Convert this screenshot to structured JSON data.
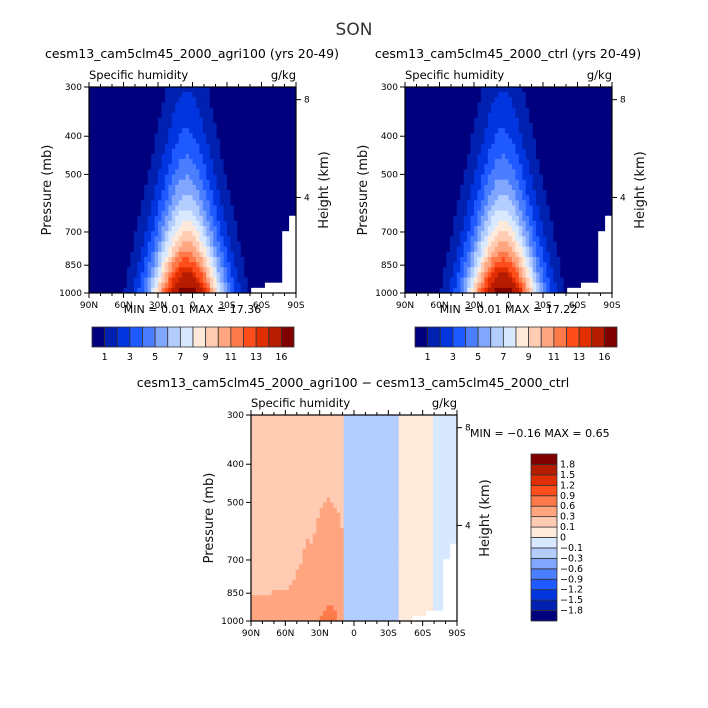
{
  "chart_data": [
    {
      "type": "heatmap",
      "subtype": "filled-contour (latitude-pressure cross section)",
      "title": "cesm13_cam5clm45_2000_agri100 (yrs 20-49)",
      "left_string": "Specific humidity",
      "right_string": "g/kg",
      "xlabel": "",
      "ylabel": "Pressure (mb)",
      "ylabel_right": "Height (km)",
      "x_ticks": [
        "90N",
        "60N",
        "30N",
        "0",
        "30S",
        "60S",
        "90S"
      ],
      "x_range": [
        90,
        -90
      ],
      "y_ticks": [
        300,
        400,
        500,
        700,
        850,
        1000
      ],
      "y_range": [
        1000,
        300
      ],
      "y_right_ticks": [
        8,
        4
      ],
      "min_label": "MIN =",
      "min_value": "0.01",
      "max_label": "MAX =",
      "max_value": "17.36",
      "colorbar": {
        "orientation": "horizontal",
        "levels": [
          1,
          2,
          3,
          4,
          5,
          6,
          7,
          8,
          9,
          10,
          11,
          12,
          13,
          14,
          16
        ],
        "tick_labels": [
          "1",
          "3",
          "5",
          "7",
          "9",
          "11",
          "13",
          "16"
        ],
        "colors": [
          "#00007f",
          "#0020b0",
          "#0035e0",
          "#1e5aff",
          "#4a7eff",
          "#80a6ff",
          "#b3cdff",
          "#d8e8ff",
          "#ffe9d9",
          "#ffccb3",
          "#ffa580",
          "#ff7a4a",
          "#ff4e1c",
          "#e02e00",
          "#b81c00",
          "#800000"
        ]
      },
      "field_description": "Moisture maximum near surface at ~5N (up to ~17 g/kg at 1000 mb), decreasing poleward and upward; contours reach ~400 mb in tropics"
    },
    {
      "type": "heatmap",
      "subtype": "filled-contour (latitude-pressure cross section)",
      "title": "cesm13_cam5clm45_2000_ctrl (yrs 20-49)",
      "left_string": "Specific humidity",
      "right_string": "g/kg",
      "xlabel": "",
      "ylabel": "Pressure (mb)",
      "ylabel_right": "Height (km)",
      "x_ticks": [
        "90N",
        "60N",
        "30N",
        "0",
        "30S",
        "60S",
        "90S"
      ],
      "x_range": [
        90,
        -90
      ],
      "y_ticks": [
        300,
        400,
        500,
        700,
        850,
        1000
      ],
      "y_range": [
        1000,
        300
      ],
      "y_right_ticks": [
        8,
        4
      ],
      "min_label": "MIN =",
      "min_value": "0.01",
      "max_label": "MAX =",
      "max_value": "17.22",
      "colorbar": {
        "orientation": "horizontal",
        "levels": [
          1,
          2,
          3,
          4,
          5,
          6,
          7,
          8,
          9,
          10,
          11,
          12,
          13,
          14,
          16
        ],
        "tick_labels": [
          "1",
          "3",
          "5",
          "7",
          "9",
          "11",
          "13",
          "16"
        ],
        "colors": [
          "#00007f",
          "#0020b0",
          "#0035e0",
          "#1e5aff",
          "#4a7eff",
          "#80a6ff",
          "#b3cdff",
          "#d8e8ff",
          "#ffe9d9",
          "#ffccb3",
          "#ffa580",
          "#ff7a4a",
          "#ff4e1c",
          "#e02e00",
          "#b81c00",
          "#800000"
        ]
      },
      "field_description": "Nearly identical to agri100 panel"
    },
    {
      "type": "heatmap",
      "subtype": "filled-contour difference (latitude-pressure cross section)",
      "title": "cesm13_cam5clm45_2000_agri100 − cesm13_cam5clm45_2000_ctrl",
      "left_string": "Specific humidity",
      "right_string": "g/kg",
      "xlabel": "",
      "ylabel": "Pressure (mb)",
      "ylabel_right": "Height (km)",
      "x_ticks": [
        "90N",
        "60N",
        "30N",
        "0",
        "30S",
        "60S",
        "90S"
      ],
      "x_range": [
        90,
        -90
      ],
      "y_ticks": [
        300,
        400,
        500,
        700,
        850,
        1000
      ],
      "y_range": [
        1000,
        300
      ],
      "y_right_ticks": [
        8,
        4
      ],
      "min_label": "MIN =",
      "min_value": "−0.16",
      "max_label": "MAX =",
      "max_value": "0.65",
      "colorbar": {
        "orientation": "vertical",
        "levels": [
          -1.8,
          -1.5,
          -1.2,
          -0.9,
          -0.6,
          -0.3,
          -0.1,
          0,
          0.1,
          0.3,
          0.6,
          0.9,
          1.2,
          1.5,
          1.8
        ],
        "tick_labels": [
          "1.8",
          "1.5",
          "1.2",
          "0.9",
          "0.6",
          "0.3",
          "0.1",
          "0",
          "−0.1",
          "−0.3",
          "−0.6",
          "−0.9",
          "−1.2",
          "−1.5",
          "−1.8"
        ],
        "colors": [
          "#00007f",
          "#0020b0",
          "#0035e0",
          "#1e5aff",
          "#4a7eff",
          "#80a6ff",
          "#b3cdff",
          "#d8e8ff",
          "#ffe9d9",
          "#ffccb3",
          "#ffa580",
          "#ff7a4a",
          "#ff4e1c",
          "#e02e00",
          "#b81c00",
          "#800000"
        ]
      },
      "field_description": "Positive (0.1-0.6 g/kg) over Northern Hemisphere 90N-~8N, largest near surface 20-30N; slightly negative (-0.1 to -0.3) over 5N-40S; near zero/positive south of 40S"
    }
  ],
  "page": {
    "season_title": "SON"
  }
}
